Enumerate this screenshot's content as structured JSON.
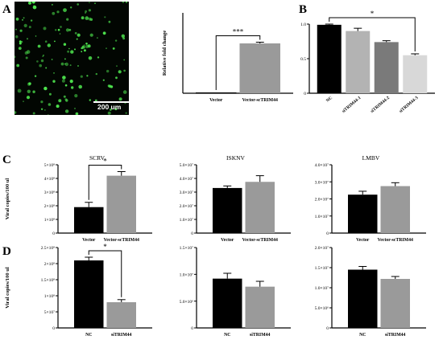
{
  "panel_labels": [
    "A",
    "B",
    "C",
    "D"
  ],
  "micrograph": {
    "scale_bar_label": "200 um",
    "colors": {
      "background": "#020602",
      "cells": "#4fe84f"
    }
  },
  "colors": {
    "black": "#000000",
    "grey": "#9a9a9a",
    "gray_dark": "#7a7a7a",
    "gray_light": "#d8d8d8",
    "gray_mid": "#b3b3b3"
  },
  "chart_data": [
    {
      "id": "A",
      "type": "bar",
      "title": "",
      "ylabel": "Relative fold change",
      "xlabel": "",
      "categories": [
        "Vector",
        "Vector-scTRIM44"
      ],
      "values": [
        1,
        62
      ],
      "errors": [
        0,
        1.5
      ],
      "bar_colors": [
        "#000000",
        "#9a9a9a"
      ],
      "ylim": [
        0,
        100
      ],
      "yticks": [],
      "significance": {
        "from": 0,
        "to": 1,
        "label": "***"
      },
      "grid": false
    },
    {
      "id": "B",
      "type": "bar",
      "title": "",
      "ylabel": "",
      "xlabel": "",
      "categories": [
        "NC",
        "siTRIM44-1",
        "siTRIM44-2",
        "siTRIM44-3"
      ],
      "values": [
        0.99,
        0.9,
        0.74,
        0.55
      ],
      "errors": [
        0.01,
        0.04,
        0.02,
        0.02
      ],
      "bar_colors": [
        "#000000",
        "#b3b3b3",
        "#7a7a7a",
        "#d8d8d8"
      ],
      "ylim": [
        0,
        1.0
      ],
      "yticks": [
        "0",
        "0.5",
        "1.0"
      ],
      "ytick_values": [
        0,
        0.5,
        1.0
      ],
      "significance": {
        "from": 0,
        "to": 3,
        "label": "*"
      },
      "grid": false
    },
    {
      "id": "C-SCRV",
      "type": "bar",
      "title": "SCRV",
      "ylabel": "Viral copies/100 ul",
      "xlabel": "",
      "categories": [
        "Vector",
        "Vector-scTRIM44"
      ],
      "values": [
        1.9,
        4.2
      ],
      "errors": [
        0.35,
        0.3
      ],
      "bar_colors": [
        "#000000",
        "#9a9a9a"
      ],
      "ylim": [
        0,
        5
      ],
      "yticks": [
        "0",
        "1×10⁸",
        "2×10⁸",
        "3×10⁸",
        "4×10⁸",
        "5×10⁸"
      ],
      "ytick_values": [
        0,
        1,
        2,
        3,
        4,
        5
      ],
      "significance": {
        "from": 0,
        "to": 1,
        "label": "*"
      },
      "grid": false
    },
    {
      "id": "C-ISKNV",
      "type": "bar",
      "title": "ISKNV",
      "ylabel": "",
      "xlabel": "",
      "categories": [
        "Vector",
        "Vector-scTRIM44"
      ],
      "values": [
        3.3,
        3.75
      ],
      "errors": [
        0.15,
        0.45
      ],
      "bar_colors": [
        "#000000",
        "#9a9a9a"
      ],
      "ylim": [
        0,
        5
      ],
      "yticks": [
        "0",
        "1.0×10⁷",
        "2.0×10⁷",
        "3.0×10⁷",
        "4.0×10⁷",
        "5.0×10⁷"
      ],
      "ytick_values": [
        0,
        1,
        2,
        3,
        4,
        5
      ],
      "grid": false
    },
    {
      "id": "C-LMBV",
      "type": "bar",
      "title": "LMBV",
      "ylabel": "",
      "xlabel": "",
      "categories": [
        "Vector",
        "Vector-scTRIM44"
      ],
      "values": [
        2.25,
        2.75
      ],
      "errors": [
        0.2,
        0.2
      ],
      "bar_colors": [
        "#000000",
        "#9a9a9a"
      ],
      "ylim": [
        0,
        4
      ],
      "yticks": [
        "0",
        "1.0×10⁷",
        "2.0×10⁷",
        "3.0×10⁷",
        "4.0×10⁷"
      ],
      "ytick_values": [
        0,
        1,
        2,
        3,
        4
      ],
      "grid": false
    },
    {
      "id": "D-SCRV",
      "type": "bar",
      "title": "",
      "ylabel": "Viral copies/100 ul",
      "xlabel": "",
      "categories": [
        "NC",
        "siTRIM44"
      ],
      "values": [
        2.1,
        0.8
      ],
      "errors": [
        0.1,
        0.08
      ],
      "bar_colors": [
        "#000000",
        "#9a9a9a"
      ],
      "ylim": [
        0,
        2.5
      ],
      "yticks": [
        "0",
        "5×10⁷",
        "1×10⁸",
        "1.5×10⁸",
        "2×10⁸",
        "2.5×10⁸"
      ],
      "ytick_values": [
        0,
        0.5,
        1,
        1.5,
        2,
        2.5
      ],
      "significance": {
        "from": 0,
        "to": 1,
        "label": "*"
      },
      "grid": false
    },
    {
      "id": "D-ISKNV",
      "type": "bar",
      "title": "",
      "ylabel": "",
      "xlabel": "",
      "categories": [
        "NC",
        "siTRIM44"
      ],
      "values": [
        0.92,
        0.77
      ],
      "errors": [
        0.1,
        0.1
      ],
      "bar_colors": [
        "#000000",
        "#9a9a9a"
      ],
      "ylim": [
        0,
        1.5
      ],
      "yticks": [
        "0",
        "5.0×10⁶",
        "1.0×10⁷",
        "1.5×10⁷"
      ],
      "ytick_values": [
        0,
        0.5,
        1.0,
        1.5
      ],
      "grid": false
    },
    {
      "id": "D-LMBV",
      "type": "bar",
      "title": "",
      "ylabel": "",
      "xlabel": "",
      "categories": [
        "NC",
        "siTRIM44"
      ],
      "values": [
        1.45,
        1.22
      ],
      "errors": [
        0.08,
        0.06
      ],
      "bar_colors": [
        "#000000",
        "#9a9a9a"
      ],
      "ylim": [
        0,
        2.0
      ],
      "yticks": [
        "0",
        "5.0×10⁶",
        "1.0×10⁷",
        "1.5×10⁷",
        "2.0×10⁷"
      ],
      "ytick_values": [
        0,
        0.5,
        1.0,
        1.5,
        2.0
      ],
      "grid": false
    }
  ]
}
